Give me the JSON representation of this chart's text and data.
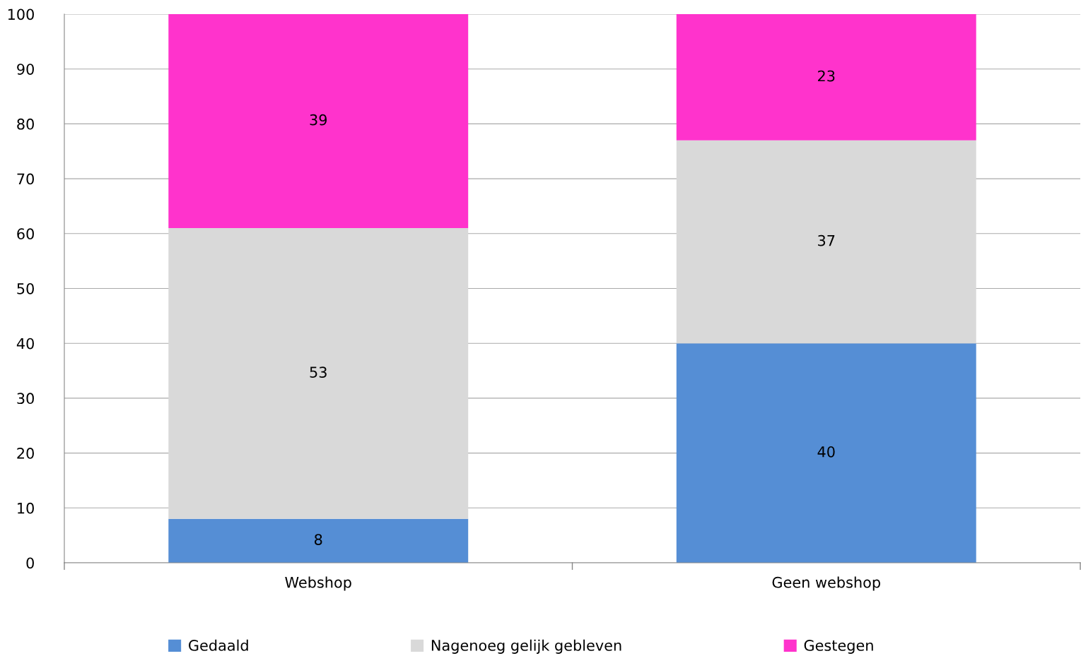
{
  "chart_data": {
    "type": "bar",
    "stacked": true,
    "categories": [
      "Webshop",
      "Geen webshop"
    ],
    "series": [
      {
        "name": "Gedaald",
        "color": "#558ed5",
        "values": [
          8,
          40
        ]
      },
      {
        "name": "Nagenoeg gelijk gebleven",
        "color": "#d9d9d9",
        "values": [
          53,
          37
        ]
      },
      {
        "name": "Gestegen",
        "color": "#ff33cc",
        "values": [
          39,
          23
        ]
      }
    ],
    "ylim": [
      0,
      100
    ],
    "yticks": [
      0,
      10,
      20,
      30,
      40,
      50,
      60,
      70,
      80,
      90,
      100
    ],
    "grid": "y",
    "legend": "bottom",
    "data_labels": true
  }
}
